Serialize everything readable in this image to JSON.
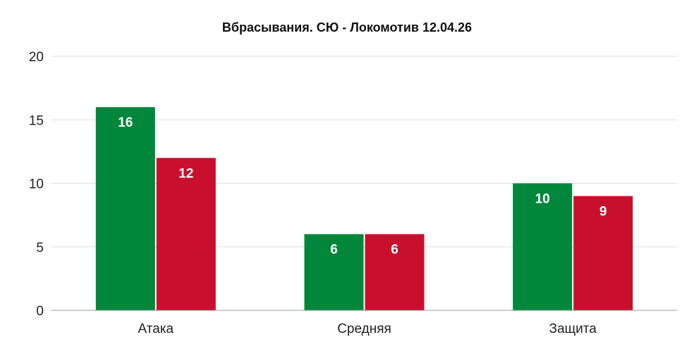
{
  "chart_data": {
    "type": "bar",
    "title": "Вбрасывания. СЮ - Локомотив 12.04.26",
    "xlabel": "",
    "ylabel": "",
    "categories": [
      "Атака",
      "Средняя",
      "Защита"
    ],
    "series": [
      {
        "values": [
          16,
          6,
          10
        ],
        "color": "#00873c"
      },
      {
        "values": [
          12,
          6,
          9
        ],
        "color": "#c8102e"
      }
    ],
    "ylim": [
      0,
      20
    ],
    "yticks": [
      "0",
      "5",
      "10",
      "15",
      "20"
    ],
    "grid": true,
    "data_labels": true
  }
}
